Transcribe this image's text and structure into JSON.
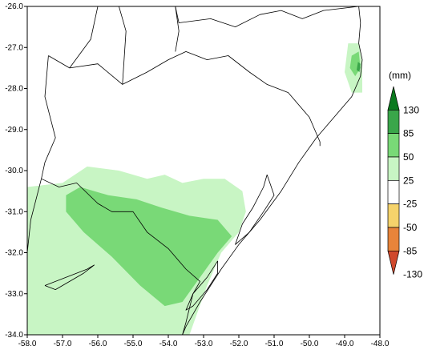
{
  "chart_data": {
    "type": "map",
    "xlim": [
      -58.0,
      -48.0
    ],
    "ylim": [
      -34.0,
      -26.0
    ],
    "x_ticks": [
      {
        "value": -58,
        "label": "-58.0"
      },
      {
        "value": -57,
        "label": "-57.0"
      },
      {
        "value": -56,
        "label": "-56.0"
      },
      {
        "value": -55,
        "label": "-55.0"
      },
      {
        "value": -54,
        "label": "-54.0"
      },
      {
        "value": -53,
        "label": "-53.0"
      },
      {
        "value": -52,
        "label": "-52.0"
      },
      {
        "value": -51,
        "label": "-51.0"
      },
      {
        "value": -50,
        "label": "-50.0"
      },
      {
        "value": -49,
        "label": "-49.0"
      },
      {
        "value": -48,
        "label": "-48.0"
      }
    ],
    "y_ticks": [
      {
        "value": -26,
        "label": "-26.0"
      },
      {
        "value": -27,
        "label": "-27.0"
      },
      {
        "value": -28,
        "label": "-28.0"
      },
      {
        "value": -29,
        "label": "-29.0"
      },
      {
        "value": -30,
        "label": "-30.0"
      },
      {
        "value": -31,
        "label": "-31.0"
      },
      {
        "value": -32,
        "label": "-32.0"
      },
      {
        "value": -33,
        "label": "-33.0"
      },
      {
        "value": -34,
        "label": "-34.0"
      }
    ],
    "colorbar": {
      "unit": "(mm)",
      "levels": [
        "130",
        "85",
        "50",
        "25",
        "-25",
        "-50",
        "-85",
        "-130"
      ],
      "colors": [
        "#0a7a1e",
        "#3aa64a",
        "#79d977",
        "#c8f5c4",
        "#ffffff",
        "#f5d36b",
        "#e8843a",
        "#d0482c"
      ]
    },
    "anomaly_areas": [
      {
        "class": "25 to 50",
        "color": "#c8f5c4",
        "polygon": [
          [
            -58.0,
            -30.4
          ],
          [
            -57.0,
            -30.3
          ],
          [
            -56.3,
            -29.9
          ],
          [
            -55.4,
            -30.0
          ],
          [
            -54.6,
            -30.2
          ],
          [
            -54.1,
            -30.1
          ],
          [
            -53.6,
            -30.3
          ],
          [
            -53.0,
            -30.2
          ],
          [
            -52.4,
            -30.2
          ],
          [
            -51.9,
            -30.5
          ],
          [
            -51.8,
            -31.0
          ],
          [
            -52.0,
            -31.5
          ],
          [
            -52.5,
            -32.0
          ],
          [
            -52.9,
            -32.8
          ],
          [
            -53.4,
            -34.0
          ],
          [
            -58.0,
            -34.0
          ]
        ]
      },
      {
        "class": "50 to 85",
        "color": "#79d977",
        "polygon": [
          [
            -56.5,
            -30.4
          ],
          [
            -55.7,
            -30.6
          ],
          [
            -54.9,
            -30.7
          ],
          [
            -54.2,
            -30.9
          ],
          [
            -53.4,
            -31.1
          ],
          [
            -52.6,
            -31.2
          ],
          [
            -52.2,
            -31.6
          ],
          [
            -52.6,
            -32.0
          ],
          [
            -53.1,
            -32.6
          ],
          [
            -53.6,
            -33.2
          ],
          [
            -54.1,
            -33.3
          ],
          [
            -54.8,
            -32.8
          ],
          [
            -55.6,
            -32.1
          ],
          [
            -56.4,
            -31.5
          ],
          [
            -56.9,
            -31.0
          ],
          [
            -56.9,
            -30.6
          ]
        ]
      },
      {
        "class": "25 to 50",
        "color": "#c8f5c4",
        "polygon": [
          [
            -48.9,
            -26.9
          ],
          [
            -48.6,
            -26.9
          ],
          [
            -48.5,
            -27.4
          ],
          [
            -48.5,
            -28.1
          ],
          [
            -48.8,
            -28.1
          ],
          [
            -49.0,
            -27.6
          ]
        ]
      },
      {
        "class": "50 to 85",
        "color": "#79d977",
        "polygon": [
          [
            -48.8,
            -27.2
          ],
          [
            -48.6,
            -27.1
          ],
          [
            -48.55,
            -27.5
          ],
          [
            -48.7,
            -27.7
          ],
          [
            -48.85,
            -27.5
          ]
        ]
      },
      {
        "class": "85 to 130",
        "color": "#3aa64a",
        "polygon": [
          [
            -48.62,
            -27.35
          ],
          [
            -48.55,
            -27.4
          ],
          [
            -48.58,
            -27.6
          ],
          [
            -48.66,
            -27.55
          ]
        ]
      }
    ],
    "borders": [
      {
        "name": "coastline",
        "points": [
          [
            -48.6,
            -26.0
          ],
          [
            -48.55,
            -26.4
          ],
          [
            -48.6,
            -26.9
          ],
          [
            -48.5,
            -27.3
          ],
          [
            -48.55,
            -27.7
          ],
          [
            -48.8,
            -28.2
          ],
          [
            -49.2,
            -28.6
          ],
          [
            -49.8,
            -29.2
          ],
          [
            -50.3,
            -29.8
          ],
          [
            -50.8,
            -30.5
          ],
          [
            -51.4,
            -31.2
          ],
          [
            -52.0,
            -31.8
          ],
          [
            -52.5,
            -32.4
          ],
          [
            -53.1,
            -33.2
          ],
          [
            -53.5,
            -33.8
          ],
          [
            -53.6,
            -34.0
          ]
        ]
      },
      {
        "name": "state-border-sc-rs",
        "points": [
          [
            -57.4,
            -27.2
          ],
          [
            -56.8,
            -27.5
          ],
          [
            -56.0,
            -27.4
          ],
          [
            -55.3,
            -27.9
          ],
          [
            -54.6,
            -27.6
          ],
          [
            -54.0,
            -27.3
          ],
          [
            -53.5,
            -27.1
          ],
          [
            -52.9,
            -27.3
          ],
          [
            -52.3,
            -27.2
          ],
          [
            -51.7,
            -27.6
          ],
          [
            -51.2,
            -27.9
          ],
          [
            -50.6,
            -28.1
          ],
          [
            -50.0,
            -28.7
          ],
          [
            -49.7,
            -29.3
          ],
          [
            -49.7,
            -29.4
          ]
        ]
      },
      {
        "name": "border-uruguay",
        "points": [
          [
            -57.6,
            -30.2
          ],
          [
            -57.1,
            -30.4
          ],
          [
            -56.6,
            -30.3
          ],
          [
            -56.0,
            -30.8
          ],
          [
            -55.6,
            -31.0
          ],
          [
            -55.0,
            -31.0
          ],
          [
            -54.6,
            -31.5
          ],
          [
            -54.0,
            -31.9
          ],
          [
            -53.5,
            -32.4
          ],
          [
            -53.1,
            -32.7
          ],
          [
            -53.3,
            -33.0
          ],
          [
            -53.5,
            -33.7
          ],
          [
            -53.6,
            -34.0
          ]
        ]
      },
      {
        "name": "border-argentina-rs",
        "points": [
          [
            -57.4,
            -27.2
          ],
          [
            -57.5,
            -28.2
          ],
          [
            -57.2,
            -29.2
          ],
          [
            -57.5,
            -29.8
          ],
          [
            -57.6,
            -30.2
          ]
        ]
      },
      {
        "name": "border-argentina-uruguay",
        "points": [
          [
            -57.6,
            -30.2
          ],
          [
            -57.9,
            -31.2
          ],
          [
            -58.0,
            -32.0
          ]
        ]
      },
      {
        "name": "border-pr-sc",
        "points": [
          [
            -53.8,
            -26.0
          ],
          [
            -53.7,
            -26.4
          ],
          [
            -52.8,
            -26.3
          ],
          [
            -52.1,
            -26.5
          ],
          [
            -51.4,
            -26.2
          ],
          [
            -50.8,
            -26.1
          ],
          [
            -50.2,
            -26.3
          ],
          [
            -49.6,
            -26.1
          ],
          [
            -48.6,
            -26.0
          ]
        ]
      },
      {
        "name": "border-argentina-sc",
        "points": [
          [
            -53.8,
            -26.0
          ],
          [
            -53.7,
            -26.6
          ],
          [
            -53.8,
            -27.1
          ]
        ]
      },
      {
        "name": "border-paraguay",
        "points": [
          [
            -56.0,
            -26.0
          ],
          [
            -56.2,
            -26.8
          ],
          [
            -56.8,
            -27.5
          ]
        ]
      },
      {
        "name": "border-corrientes",
        "points": [
          [
            -55.4,
            -26.0
          ],
          [
            -55.2,
            -26.6
          ],
          [
            -55.3,
            -27.9
          ]
        ]
      },
      {
        "name": "lagoa-dos-patos",
        "points": [
          [
            -51.2,
            -30.1
          ],
          [
            -51.0,
            -30.6
          ],
          [
            -51.3,
            -31.0
          ],
          [
            -51.7,
            -31.5
          ],
          [
            -52.1,
            -31.8
          ],
          [
            -51.9,
            -31.3
          ],
          [
            -51.6,
            -30.9
          ],
          [
            -51.3,
            -30.4
          ],
          [
            -51.2,
            -30.1
          ]
        ]
      },
      {
        "name": "lagoa-mirim",
        "points": [
          [
            -52.6,
            -32.2
          ],
          [
            -52.9,
            -32.6
          ],
          [
            -53.3,
            -33.0
          ],
          [
            -53.5,
            -33.4
          ],
          [
            -53.3,
            -33.3
          ],
          [
            -52.9,
            -32.9
          ],
          [
            -52.6,
            -32.5
          ],
          [
            -52.6,
            -32.2
          ]
        ]
      },
      {
        "name": "rio-negro-lake",
        "points": [
          [
            -57.5,
            -32.8
          ],
          [
            -57.2,
            -32.7
          ],
          [
            -56.9,
            -32.6
          ],
          [
            -56.6,
            -32.5
          ],
          [
            -56.3,
            -32.4
          ],
          [
            -56.1,
            -32.3
          ],
          [
            -56.4,
            -32.5
          ],
          [
            -56.8,
            -32.7
          ],
          [
            -57.2,
            -32.9
          ],
          [
            -57.5,
            -32.8
          ]
        ]
      }
    ]
  }
}
